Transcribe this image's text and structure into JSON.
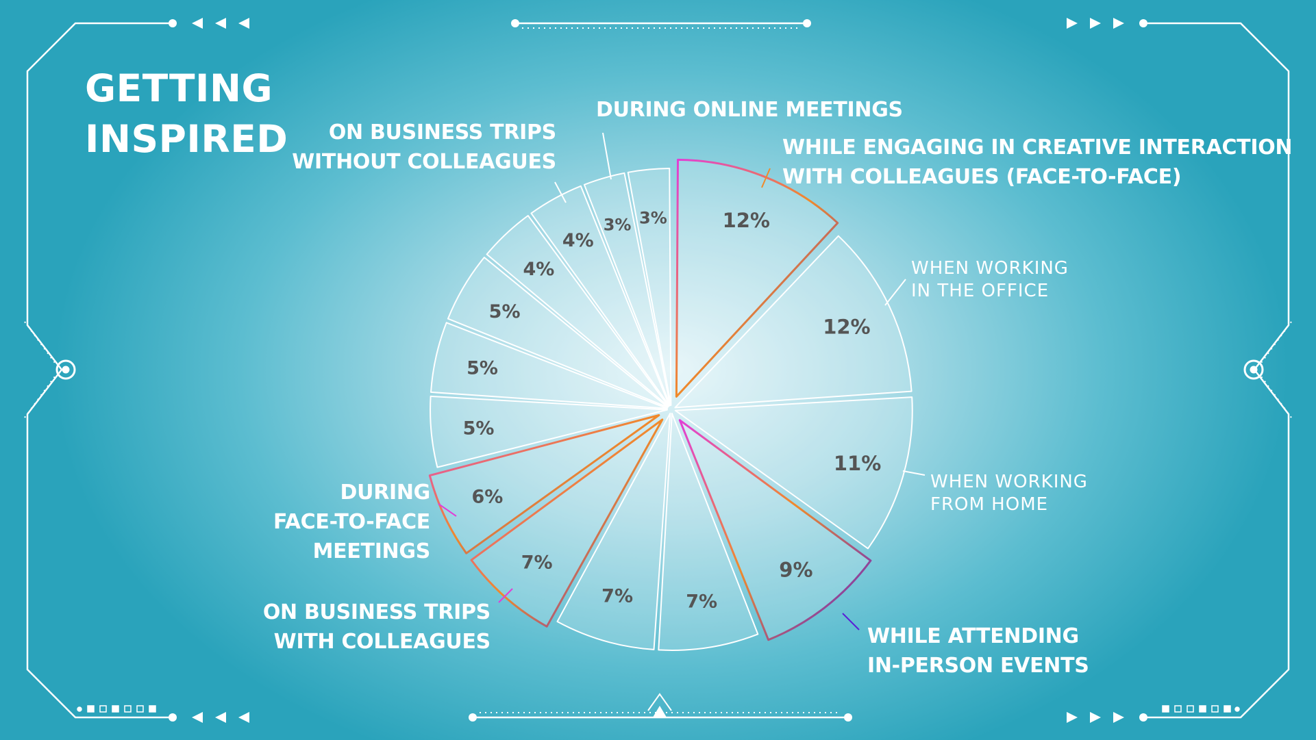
{
  "title": "GETTING\nINSPIRED",
  "chart_data": {
    "type": "pie",
    "title": "GETTING INSPIRED",
    "slices": [
      {
        "value": 12,
        "label": "12%",
        "category": "WHILE ENGAGING IN CREATIVE INTERACTION WITH COLLEAGUES (FACE-TO-FACE)",
        "highlight": true
      },
      {
        "value": 12,
        "label": "12%",
        "category": "WHEN WORKING IN THE OFFICE",
        "highlight": false
      },
      {
        "value": 11,
        "label": "11%",
        "category": "WHEN WORKING FROM HOME",
        "highlight": false
      },
      {
        "value": 9,
        "label": "9%",
        "category": "WHILE ATTENDING IN-PERSON EVENTS",
        "highlight": true
      },
      {
        "value": 7,
        "label": "7%",
        "category": "",
        "highlight": false
      },
      {
        "value": 7,
        "label": "7%",
        "category": "",
        "highlight": false
      },
      {
        "value": 7,
        "label": "7%",
        "category": "ON BUSINESS TRIPS WITH COLLEAGUES",
        "highlight": true
      },
      {
        "value": 6,
        "label": "6%",
        "category": "DURING FACE-TO-FACE MEETINGS",
        "highlight": true
      },
      {
        "value": 5,
        "label": "5%",
        "category": "",
        "highlight": false
      },
      {
        "value": 5,
        "label": "5%",
        "category": "",
        "highlight": false
      },
      {
        "value": 5,
        "label": "5%",
        "category": "",
        "highlight": false
      },
      {
        "value": 4,
        "label": "4%",
        "category": "",
        "highlight": false
      },
      {
        "value": 4,
        "label": "4%",
        "category": "ON BUSINESS TRIPS WITHOUT COLLEAGUES",
        "highlight": false
      },
      {
        "value": 3,
        "label": "3%",
        "category": "DURING ONLINE MEETINGS",
        "highlight": false
      },
      {
        "value": 3,
        "label": "3%",
        "category": "",
        "highlight": false
      }
    ]
  },
  "labels": {
    "creative": "WHILE ENGAGING IN CREATIVE INTERACTION\nWITH COLLEAGUES (FACE-TO-FACE)",
    "office": "WHEN WORKING\nIN THE OFFICE",
    "home": "WHEN WORKING\nFROM HOME",
    "events": "WHILE ATTENDING\nIN-PERSON EVENTS",
    "trips_with": "ON BUSINESS TRIPS\nWITH COLLEAGUES",
    "f2f": "DURING\nFACE-TO-FACE\nMEETINGS",
    "trips_without": "ON BUSINESS TRIPS\nWITHOUT COLLEAGUES",
    "online": "DURING ONLINE MEETINGS"
  },
  "colors": {
    "gradient_start": "#e13fd6",
    "gradient_mid": "#f08a2a",
    "gradient_end": "#5a1fd6",
    "slice_text": "#555555",
    "frame": "#ffffff"
  }
}
